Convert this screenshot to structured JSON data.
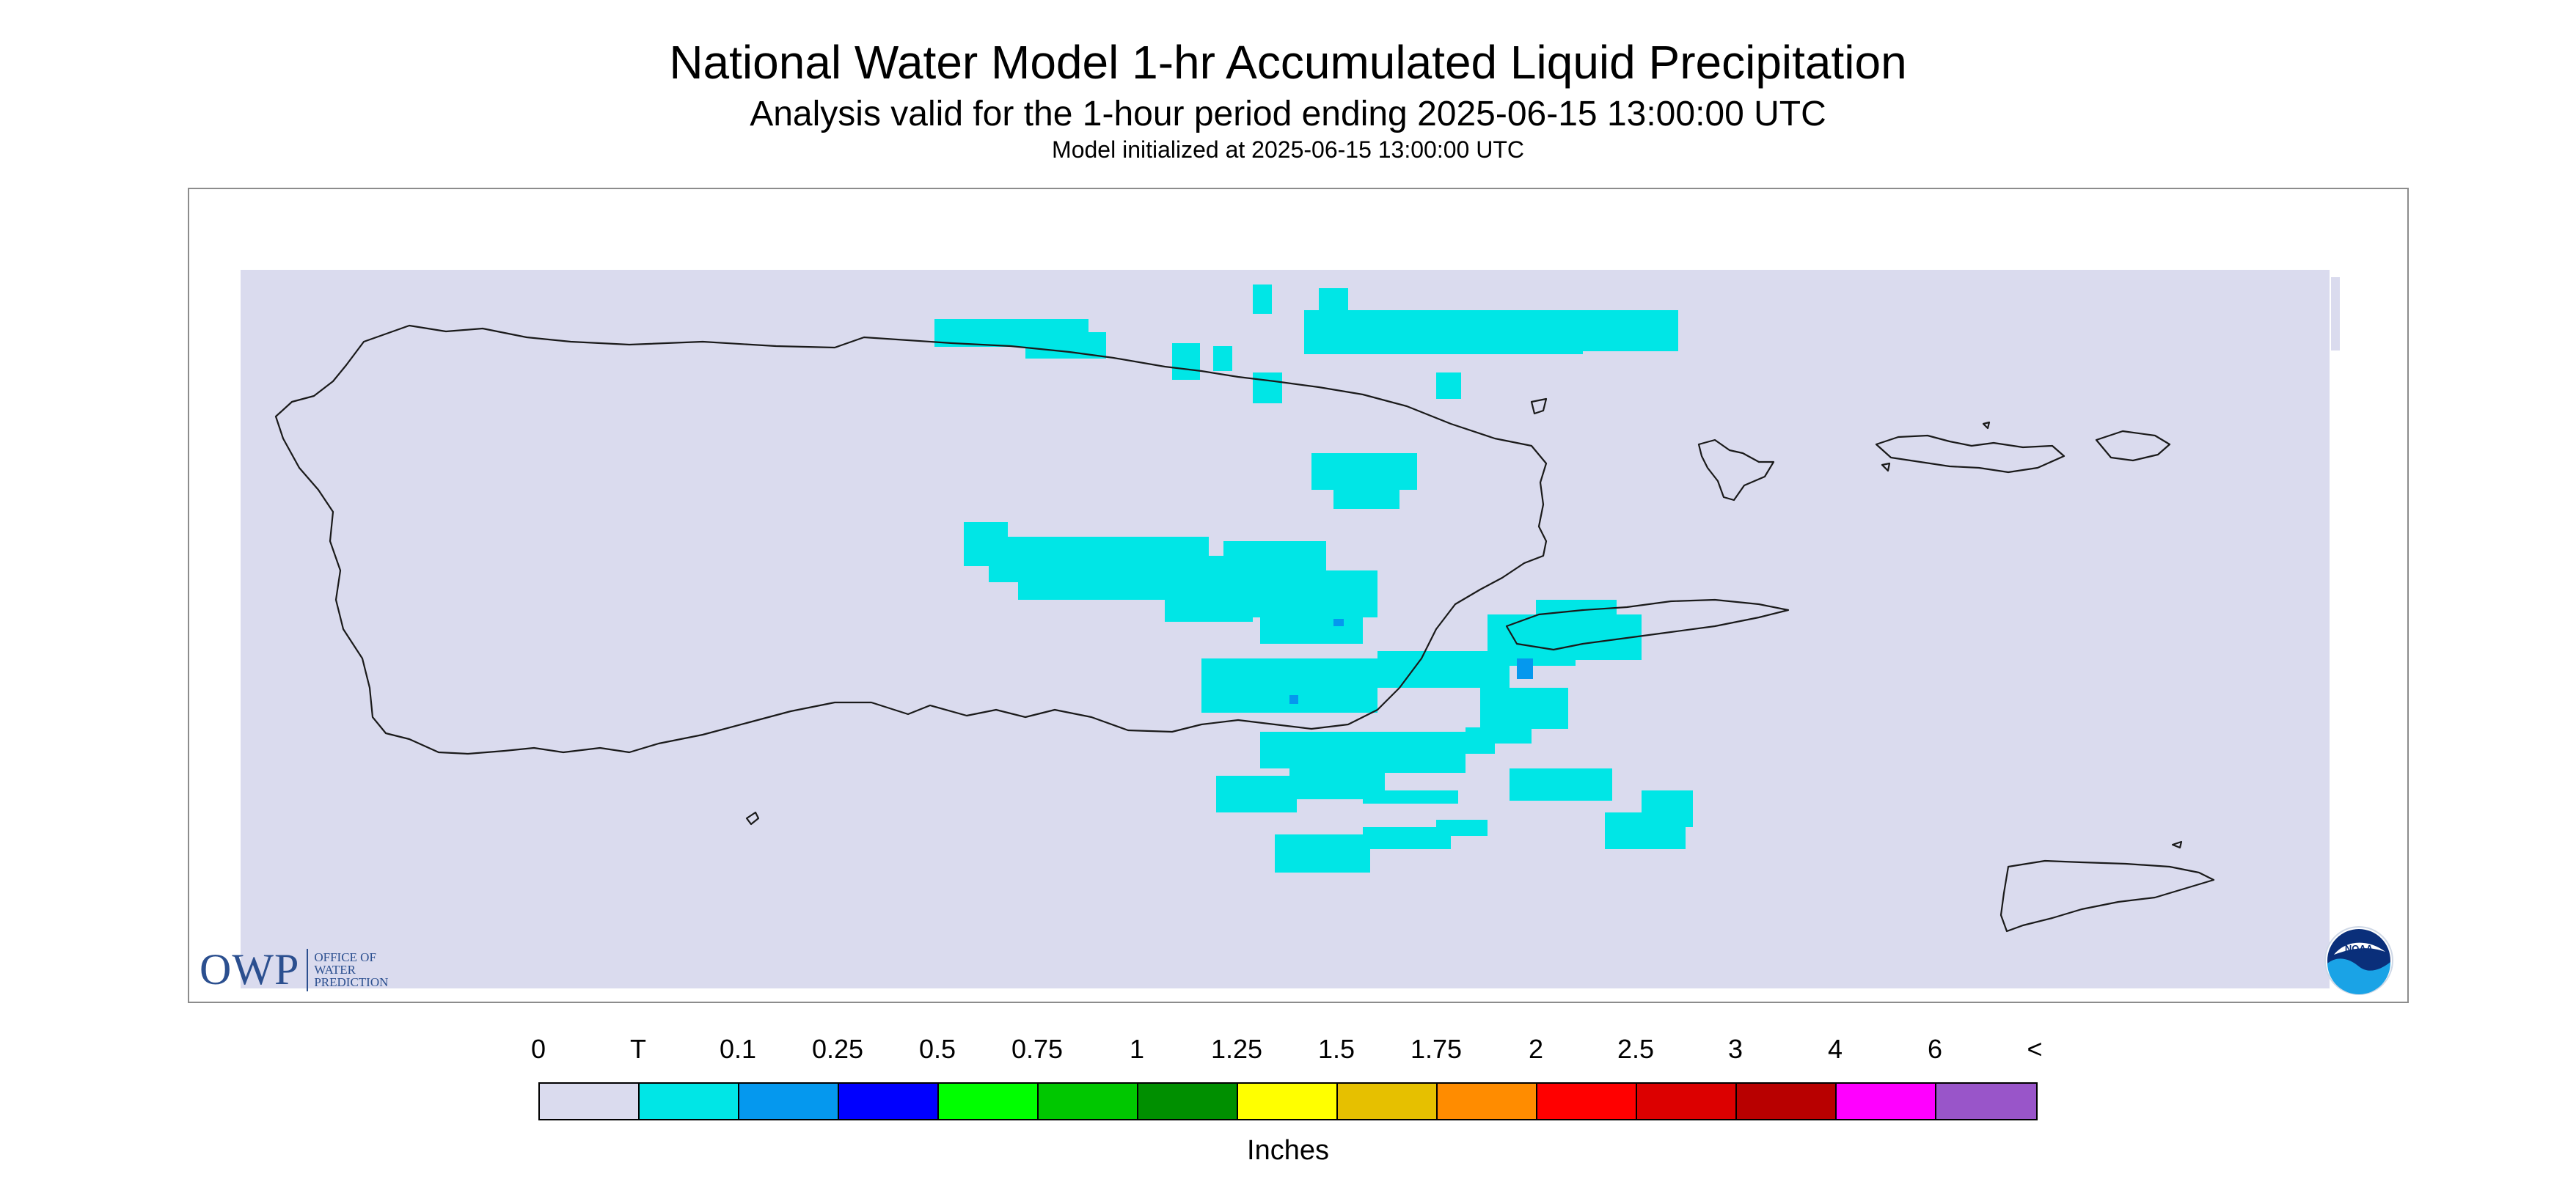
{
  "title": "National Water Model 1-hr Accumulated Liquid Precipitation",
  "subtitle": "Analysis valid for the 1-hour period ending 2025-06-15 13:00:00 UTC",
  "init_line": "Model initialized at 2025-06-15 13:00:00 UTC",
  "map": {
    "region": "Puerto Rico and U.S. Virgin Islands",
    "background_color": "#dadbee",
    "precip_color_trace": "#00e6e6",
    "precip_color_01": "#0598ee"
  },
  "logos": {
    "owp_big": "OWP",
    "owp_lines": [
      "OFFICE OF",
      "WATER",
      "PREDICTION"
    ],
    "noaa": "NOAA"
  },
  "legend": {
    "labels": [
      "0",
      "T",
      "0.1",
      "0.25",
      "0.5",
      "0.75",
      "1",
      "1.25",
      "1.5",
      "1.75",
      "2",
      "2.5",
      "3",
      "4",
      "6",
      "<"
    ],
    "colors": [
      "#dadbee",
      "#00e6e6",
      "#0598ee",
      "#0000ff",
      "#00ff00",
      "#00c700",
      "#008f00",
      "#ffff00",
      "#e6c000",
      "#ff8c00",
      "#ff0000",
      "#dc0000",
      "#b80000",
      "#ff00ff",
      "#9955c9"
    ],
    "units": "Inches"
  }
}
